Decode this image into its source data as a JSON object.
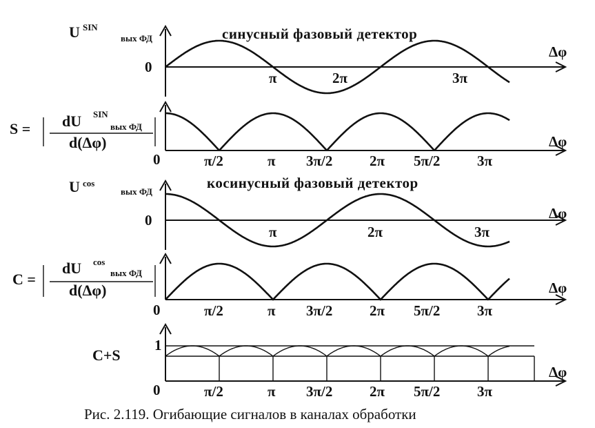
{
  "panels": {
    "sin": {
      "ylabel_main": "U",
      "ylabel_sup": "SIN",
      "ylabel_sub": "вых ФД",
      "title": "синусный фазовый детектор",
      "origin": "0",
      "xlabel": "Δφ",
      "ticks": [
        "π",
        "2π",
        "3π"
      ]
    },
    "s": {
      "lhs": "S =",
      "numerator_main": "dU",
      "numerator_sup": "SIN",
      "numerator_sub": "вых ФД",
      "denominator": "d(Δφ)",
      "origin": "0",
      "xlabel": "Δφ",
      "ticks": [
        "π/2",
        "π",
        "3π/2",
        "2π",
        "5π/2",
        "3π"
      ]
    },
    "cos": {
      "ylabel_main": "U",
      "ylabel_sup": "cos",
      "ylabel_sub": "вых ФД",
      "title": "косинусный фазовый детектор",
      "origin": "0",
      "xlabel": "Δφ",
      "ticks": [
        "π",
        "2π",
        "3π"
      ]
    },
    "c": {
      "lhs": "C =",
      "numerator_main": "dU",
      "numerator_sup": "cos",
      "numerator_sub": "вых ФД",
      "denominator": "d(Δφ)",
      "origin": "0",
      "xlabel": "Δφ",
      "ticks": [
        "π/2",
        "π",
        "3π/2",
        "2π",
        "5π/2",
        "3π"
      ]
    },
    "cs": {
      "label": "C+S",
      "level": "1",
      "origin": "0",
      "xlabel": "Δφ",
      "ticks": [
        "π/2",
        "π",
        "3π/2",
        "2π",
        "5π/2",
        "3π"
      ]
    }
  },
  "caption": "Рис. 2.119. Огибающие сигналов в каналах обработки",
  "chart_data": [
    {
      "type": "line",
      "title": "синусный фазовый детектор",
      "ylabel": "Uвых ФД (sin)",
      "xlabel": "Δφ",
      "function": "sin(Δφ)",
      "x_range": [
        0,
        10.05
      ],
      "xticks": [
        "π",
        "2π",
        "3π"
      ]
    },
    {
      "type": "line",
      "ylabel": "S = |dU/d(Δφ)|",
      "xlabel": "Δφ",
      "function": "|cos(Δφ)|",
      "x_range": [
        0,
        10.05
      ],
      "xticks": [
        "π/2",
        "π",
        "3π/2",
        "2π",
        "5π/2",
        "3π"
      ]
    },
    {
      "type": "line",
      "title": "косинусный фазовый детектор",
      "ylabel": "Uвых ФД (cos)",
      "xlabel": "Δφ",
      "function": "cos(Δφ)",
      "x_range": [
        0,
        10.05
      ],
      "xticks": [
        "π",
        "2π",
        "3π"
      ]
    },
    {
      "type": "line",
      "ylabel": "C = |dU/d(Δφ)|",
      "xlabel": "Δφ",
      "function": "|sin(Δφ)|",
      "x_range": [
        0,
        10.05
      ],
      "xticks": [
        "π/2",
        "π",
        "3π/2",
        "2π",
        "5π/2",
        "3π"
      ]
    },
    {
      "type": "line",
      "ylabel": "C+S",
      "xlabel": "Δφ",
      "function": "envelope of |sin(Δφ)| and |cos(Δφ)|",
      "level": 1,
      "x_range": [
        0,
        10.05
      ],
      "xticks": [
        "π/2",
        "π",
        "3π/2",
        "2π",
        "5π/2",
        "3π"
      ]
    }
  ]
}
